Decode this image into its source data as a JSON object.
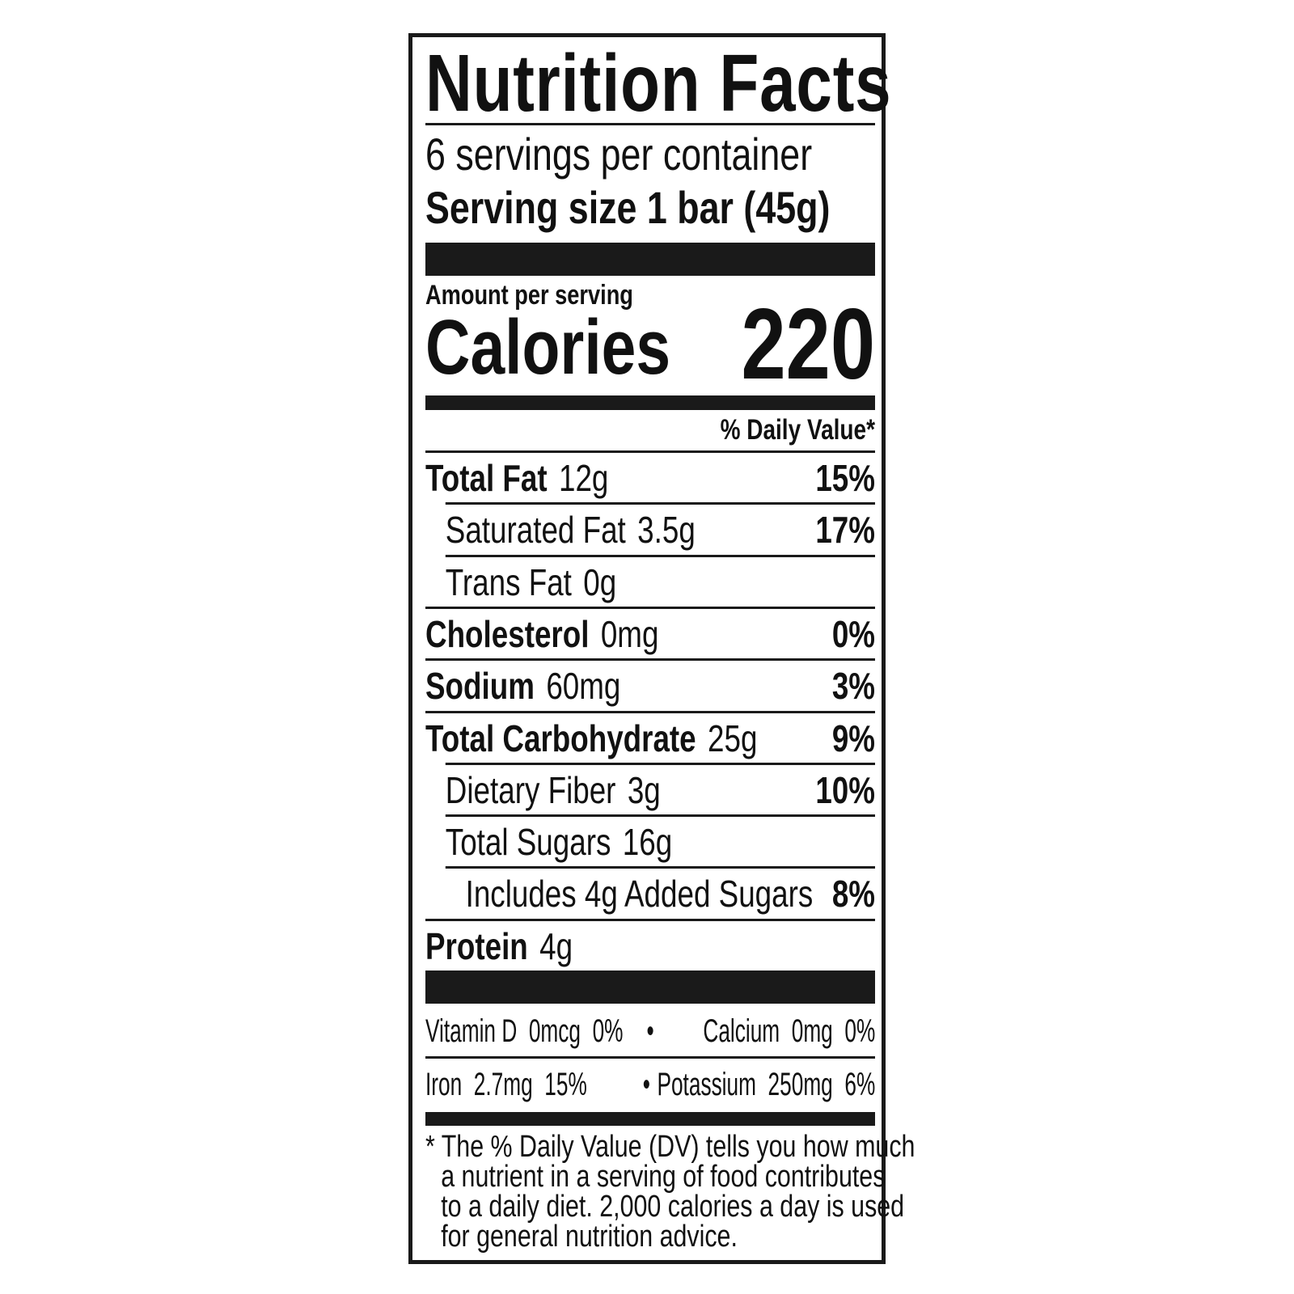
{
  "title": "Nutrition Facts",
  "servings_per_container": "6 servings per container",
  "serving_size": "Serving size 1 bar (45g)",
  "amount_per_serving": "Amount per serving",
  "calories_label": "Calories",
  "calories_value": "220",
  "daily_value_header": "% Daily Value*",
  "nutrients": [
    {
      "name": "Total Fat",
      "amount": "12g",
      "dv": "15%",
      "bold": true,
      "indent": 0
    },
    {
      "name": "Saturated Fat",
      "amount": "3.5g",
      "dv": "17%",
      "bold": false,
      "indent": 1
    },
    {
      "name": "Trans Fat",
      "amount": "0g",
      "dv": "",
      "bold": false,
      "indent": 1
    },
    {
      "name": "Cholesterol",
      "amount": "0mg",
      "dv": "0%",
      "bold": true,
      "indent": 0
    },
    {
      "name": "Sodium",
      "amount": "60mg",
      "dv": "3%",
      "bold": true,
      "indent": 0
    },
    {
      "name": "Total Carbohydrate",
      "amount": "25g",
      "dv": "9%",
      "bold": true,
      "indent": 0
    },
    {
      "name": "Dietary Fiber",
      "amount": "3g",
      "dv": "10%",
      "bold": false,
      "indent": 1
    },
    {
      "name": "Total Sugars",
      "amount": "16g",
      "dv": "",
      "bold": false,
      "indent": 1
    },
    {
      "name": "Includes 4g Added Sugars",
      "amount": "",
      "dv": "8%",
      "bold": false,
      "indent": 2
    },
    {
      "name": "Protein",
      "amount": "4g",
      "dv": "",
      "bold": true,
      "indent": 0
    }
  ],
  "vitamins": [
    [
      {
        "text": "Vitamin D  0mcg  0%"
      },
      {
        "text": "Calcium  0mg  0%"
      }
    ],
    [
      {
        "text": "Iron  2.7mg  15%"
      },
      {
        "text": "Potassium  250mg  6%"
      }
    ]
  ],
  "separator": "•",
  "footnote": "* The % Daily Value (DV) tells you how much a nutrient in a serving of food contributes to a daily diet. 2,000 calories a day is used for general nutrition advice.",
  "footnote_lines": [
    "* The % Daily Value (DV) tells you how much",
    "a nutrient in a serving of food contributes",
    "to a daily diet. 2,000 calories a day is used",
    "for general nutrition advice."
  ]
}
